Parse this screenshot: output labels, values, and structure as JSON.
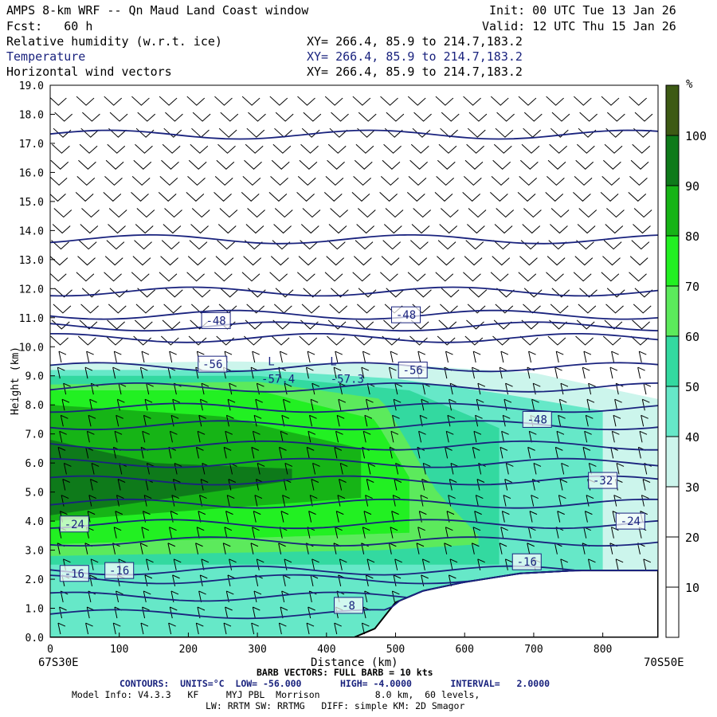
{
  "header": {
    "title": "AMPS 8-km WRF -- Qn Maud Land Coast window",
    "init": "Init: 00 UTC Tue 13 Jan 26",
    "fcst": "Fcst:   60 h",
    "valid": "Valid: 12 UTC Thu 15 Jan 26",
    "fields": [
      {
        "name": "Relative humidity (w.r.t. ice)",
        "xy": "XY= 266.4, 85.9 to 214.7,183.2",
        "color": "#000000"
      },
      {
        "name": "Temperature",
        "xy": "XY= 266.4, 85.9 to 214.7,183.2",
        "color": "#1a237e"
      },
      {
        "name": "Horizontal wind vectors",
        "xy": "XY= 266.4, 85.9 to 214.7,183.2",
        "color": "#000000"
      }
    ]
  },
  "footer": {
    "start_label": "67S30E",
    "end_label": "70S50E",
    "barb_note": "BARB VECTORS: FULL BARB = 10 kts",
    "contours": "CONTOURS:  UNITS=°C  LOW= -56.000       HIGH= -4.0000       INTERVAL=   2.0000",
    "model_info": "Model Info: V4.3.3   KF     MYJ PBL  Morrison          8.0 km,  60 levels,",
    "model_info2": "LW: RRTM SW: RRTMG   DIFF: simple KM: 2D Smagor"
  },
  "colorbar": {
    "unit": "%",
    "levels": [
      10,
      20,
      30,
      40,
      50,
      60,
      70,
      80,
      90,
      100
    ],
    "colors": [
      "#ffffff",
      "#ffffff",
      "#ffffff",
      "#ccf5ec",
      "#66e8c8",
      "#33d9a0",
      "#5cea5c",
      "#22f022",
      "#16b416",
      "#0e7a1a",
      "#3d5a14"
    ]
  },
  "chart_data": {
    "type": "cross-section",
    "title": "AMPS 8-km WRF -- Qn Maud Land Coast window",
    "xlabel": "Distance (km)",
    "ylabel": "Height (km)",
    "xlim": [
      0,
      880
    ],
    "ylim": [
      0,
      19
    ],
    "x_ticks": [
      0,
      100,
      200,
      300,
      400,
      500,
      600,
      700,
      800
    ],
    "y_ticks": [
      "0.0",
      "1.0",
      "2.0",
      "3.0",
      "4.0",
      "5.0",
      "6.0",
      "7.0",
      "8.0",
      "9.0",
      "10.0",
      "11.0",
      "12.0",
      "13.0",
      "14.0",
      "15.0",
      "16.0",
      "17.0",
      "18.0",
      "19.0"
    ],
    "terrain_km": [
      [
        0,
        0
      ],
      [
        440,
        0
      ],
      [
        470,
        0.3
      ],
      [
        500,
        1.2
      ],
      [
        540,
        1.6
      ],
      [
        600,
        1.9
      ],
      [
        680,
        2.2
      ],
      [
        760,
        2.3
      ],
      [
        880,
        2.3
      ]
    ],
    "rh_layers": [
      {
        "value": 35,
        "top_km": [
          [
            0,
            9.4
          ],
          [
            250,
            9.5
          ],
          [
            500,
            9.4
          ],
          [
            700,
            9.1
          ],
          [
            880,
            8.2
          ]
        ],
        "bottom_km": [
          [
            0,
            0
          ],
          [
            880,
            0
          ]
        ]
      },
      {
        "value": 45,
        "top_km": [
          [
            0,
            9.2
          ],
          [
            300,
            9.2
          ],
          [
            500,
            8.9
          ],
          [
            650,
            8.4
          ],
          [
            800,
            7.8
          ]
        ],
        "bottom_km": [
          [
            0,
            0
          ],
          [
            880,
            0
          ]
        ]
      },
      {
        "value": 55,
        "top_km": [
          [
            0,
            9.0
          ],
          [
            300,
            9.0
          ],
          [
            520,
            8.5
          ],
          [
            650,
            7.2
          ]
        ],
        "bottom_km": [
          [
            0,
            2.5
          ],
          [
            880,
            2.5
          ]
        ]
      },
      {
        "value": 65,
        "top_km": [
          [
            0,
            8.7
          ],
          [
            300,
            8.8
          ],
          [
            480,
            8.2
          ],
          [
            560,
            5.0
          ],
          [
            620,
            3.5
          ]
        ],
        "bottom_km": [
          [
            0,
            2.8
          ],
          [
            480,
            3.0
          ],
          [
            620,
            3.2
          ]
        ]
      },
      {
        "value": 75,
        "top_km": [
          [
            0,
            8.5
          ],
          [
            300,
            8.5
          ],
          [
            470,
            7.5
          ],
          [
            520,
            5.5
          ]
        ],
        "bottom_km": [
          [
            0,
            3.2
          ],
          [
            520,
            3.6
          ]
        ]
      },
      {
        "value": 85,
        "top_km": [
          [
            0,
            8.0
          ],
          [
            250,
            7.6
          ],
          [
            450,
            6.5
          ]
        ],
        "bottom_km": [
          [
            0,
            4.0
          ],
          [
            450,
            4.8
          ]
        ]
      },
      {
        "value": 95,
        "top_km": [
          [
            0,
            6.8
          ],
          [
            150,
            6.0
          ],
          [
            350,
            5.8
          ]
        ],
        "bottom_km": [
          [
            0,
            4.2
          ],
          [
            350,
            5.4
          ]
        ]
      }
    ],
    "temperature_contours_km": [
      {
        "value": -4,
        "height_km": 0.8
      },
      {
        "value": -8,
        "height_km": 1.4
      },
      {
        "value": -12,
        "height_km": 2.0
      },
      {
        "value": -16,
        "height_km": 2.3
      },
      {
        "value": -20,
        "height_km": 3.3
      },
      {
        "value": -24,
        "height_km": 3.9
      },
      {
        "value": -28,
        "height_km": 4.6
      },
      {
        "value": -32,
        "height_km": 5.4
      },
      {
        "value": -36,
        "height_km": 6.0
      },
      {
        "value": -40,
        "height_km": 6.6
      },
      {
        "value": -44,
        "height_km": 7.3
      },
      {
        "value": -48,
        "height_km": 7.9
      },
      {
        "value": -52,
        "height_km": 8.6
      },
      {
        "value": -56,
        "height_km": 9.3
      },
      {
        "value": -52,
        "height_km": 10.3
      },
      {
        "value": -50,
        "height_km": 10.7
      },
      {
        "value": -48,
        "height_km": 11.1
      },
      {
        "value": -50,
        "height_km": 11.9
      },
      {
        "value": -52,
        "height_km": 13.7
      },
      {
        "value": -54,
        "height_km": 17.3
      }
    ],
    "contour_labels": [
      {
        "text": "-48",
        "x": 240,
        "y": 10.9
      },
      {
        "text": "-48",
        "x": 515,
        "y": 11.1
      },
      {
        "text": "-56",
        "x": 235,
        "y": 9.4
      },
      {
        "text": "-56",
        "x": 525,
        "y": 9.2
      },
      {
        "text": "-48",
        "x": 705,
        "y": 7.5
      },
      {
        "text": "-32",
        "x": 800,
        "y": 5.4
      },
      {
        "text": "-24",
        "x": 35,
        "y": 3.9
      },
      {
        "text": "-24",
        "x": 840,
        "y": 4.0
      },
      {
        "text": "-16",
        "x": 35,
        "y": 2.2
      },
      {
        "text": "-16",
        "x": 100,
        "y": 2.3
      },
      {
        "text": "-16",
        "x": 690,
        "y": 2.6
      },
      {
        "text": "-8",
        "x": 432,
        "y": 1.1
      }
    ],
    "extrema_labels": [
      {
        "text": "L",
        "x": 320,
        "y": 9.5
      },
      {
        "text": "-57.4",
        "x": 330,
        "y": 8.9
      },
      {
        "text": "L",
        "x": 410,
        "y": 9.5
      },
      {
        "text": "-57.3",
        "x": 430,
        "y": 8.9
      }
    ]
  }
}
